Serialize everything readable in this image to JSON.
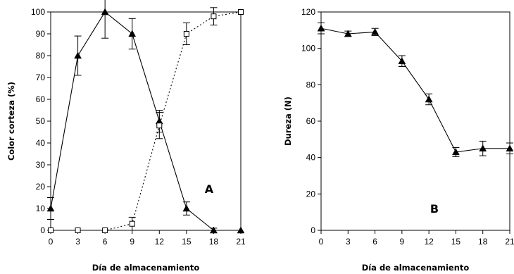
{
  "chart_data": [
    {
      "type": "line",
      "panel_label": "A",
      "xlabel": "Día de almacenamiento",
      "ylabel": "Color corteza (%)",
      "xlim": [
        0,
        21
      ],
      "ylim": [
        0,
        100
      ],
      "x_ticks": [
        0,
        3,
        6,
        9,
        12,
        15,
        18,
        21
      ],
      "y_ticks": [
        0,
        10,
        20,
        30,
        40,
        50,
        60,
        70,
        80,
        90,
        100
      ],
      "grid": false,
      "series": [
        {
          "marker": "filled-triangle",
          "line": "solid",
          "x": [
            0,
            3,
            6,
            9,
            12,
            15,
            18,
            21
          ],
          "y": [
            10,
            80,
            100,
            90,
            50,
            10,
            0,
            0
          ],
          "err": [
            5,
            9,
            12,
            7,
            5,
            3,
            1,
            0
          ]
        },
        {
          "marker": "open-square",
          "line": "dotted",
          "x": [
            0,
            3,
            6,
            9,
            12,
            15,
            18,
            21
          ],
          "y": [
            0,
            0,
            0,
            3,
            48,
            90,
            98,
            100
          ],
          "err": [
            0,
            0,
            0,
            3,
            6,
            5,
            4,
            0
          ]
        }
      ]
    },
    {
      "type": "line",
      "panel_label": "B",
      "xlabel": "Día de almacenamiento",
      "ylabel": "Dureza (N)",
      "xlim": [
        0,
        21
      ],
      "ylim": [
        0,
        120
      ],
      "x_ticks": [
        0,
        3,
        6,
        9,
        12,
        15,
        18,
        21
      ],
      "y_ticks": [
        0,
        20,
        40,
        60,
        80,
        100,
        120
      ],
      "grid": false,
      "series": [
        {
          "marker": "filled-triangle",
          "line": "solid",
          "x": [
            0,
            3,
            6,
            9,
            12,
            15,
            18,
            21
          ],
          "y": [
            111,
            108,
            109,
            93,
            72,
            43,
            45,
            45
          ],
          "err": [
            3,
            1.5,
            2,
            3,
            3,
            2.5,
            4,
            3
          ]
        }
      ]
    }
  ],
  "colors": {
    "series": "#000000",
    "background": "#ffffff"
  }
}
